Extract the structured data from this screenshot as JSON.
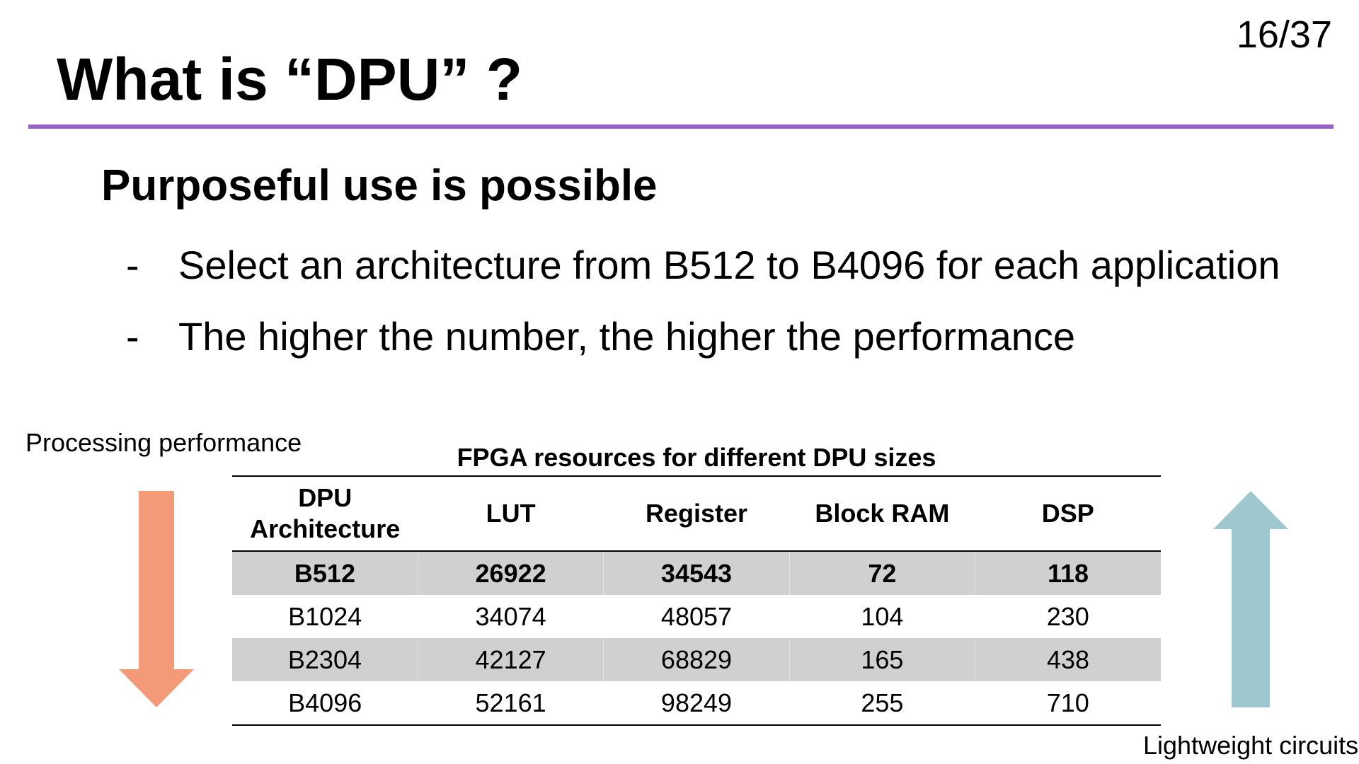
{
  "page_number": "16/37",
  "title": "What is “DPU” ?",
  "subheading": "Purposeful use is possible",
  "bullets": [
    {
      "dash": "-",
      "text": "Select an architecture from B512 to B4096 for each application"
    },
    {
      "dash": "-",
      "text": "The higher the number, the higher the performance"
    }
  ],
  "labels": {
    "processing": "Processing performance",
    "lightweight": "Lightweight circuits"
  },
  "icons": {
    "down_arrow": "arrow-down-icon",
    "up_arrow": "arrow-up-icon"
  },
  "colors": {
    "title_rule": "#9763c4",
    "down_arrow": "#f39a78",
    "up_arrow": "#9ec7cf",
    "row_shade": "#d0d0d0"
  },
  "table": {
    "caption": "FPGA resources for different DPU sizes",
    "headers": {
      "arch_line1": "DPU",
      "arch_line2": "Architecture",
      "lut": "LUT",
      "register": "Register",
      "block_ram": "Block RAM",
      "dsp": "DSP"
    },
    "rows": [
      {
        "arch": "B512",
        "lut": "26922",
        "register": "34543",
        "block_ram": "72",
        "dsp": "118"
      },
      {
        "arch": "B1024",
        "lut": "34074",
        "register": "48057",
        "block_ram": "104",
        "dsp": "230"
      },
      {
        "arch": "B2304",
        "lut": "42127",
        "register": "68829",
        "block_ram": "165",
        "dsp": "438"
      },
      {
        "arch": "B4096",
        "lut": "52161",
        "register": "98249",
        "block_ram": "255",
        "dsp": "710"
      }
    ]
  }
}
